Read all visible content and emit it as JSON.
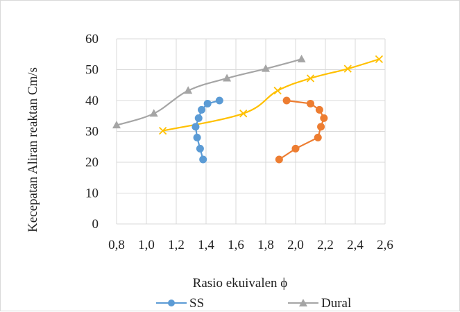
{
  "chart_data": {
    "type": "scatter",
    "xlabel": "Rasio ekuivalen   ϕ",
    "ylabel": "Kecepatan Aliran reaktan   Cm/s",
    "xlim": [
      0.8,
      2.6
    ],
    "ylim": [
      0,
      60
    ],
    "x_ticks": [
      "0,8",
      "1,0",
      "1,2",
      "1,4",
      "1,6",
      "1,8",
      "2,0",
      "2,2",
      "2,4",
      "2,6"
    ],
    "y_ticks": [
      "0",
      "10",
      "20",
      "30",
      "40",
      "50",
      "60"
    ],
    "grid": "vertical and horizontal",
    "legend_position": "bottom",
    "series": [
      {
        "name": "SS",
        "color": "#5b9bd5",
        "marker": "circle",
        "line": "straight",
        "points": [
          {
            "x": 1.49,
            "y": 40.0
          },
          {
            "x": 1.41,
            "y": 39.0
          },
          {
            "x": 1.37,
            "y": 37.0
          },
          {
            "x": 1.35,
            "y": 34.3
          },
          {
            "x": 1.33,
            "y": 31.5
          },
          {
            "x": 1.34,
            "y": 28.0
          },
          {
            "x": 1.36,
            "y": 24.4
          },
          {
            "x": 1.38,
            "y": 20.9
          }
        ]
      },
      {
        "name": "",
        "color": "#ed7d31",
        "marker": "circle",
        "line": "straight",
        "points": [
          {
            "x": 1.94,
            "y": 40.0
          },
          {
            "x": 2.1,
            "y": 39.0
          },
          {
            "x": 2.16,
            "y": 37.0
          },
          {
            "x": 2.19,
            "y": 34.3
          },
          {
            "x": 2.17,
            "y": 31.5
          },
          {
            "x": 2.15,
            "y": 28.0
          },
          {
            "x": 2.0,
            "y": 24.4
          },
          {
            "x": 1.89,
            "y": 20.9
          }
        ]
      },
      {
        "name": "Dural",
        "color": "#a5a5a5",
        "marker": "triangle",
        "line": "smooth",
        "points": [
          {
            "x": 0.8,
            "y": 32.0
          },
          {
            "x": 1.05,
            "y": 35.8
          },
          {
            "x": 1.28,
            "y": 43.2
          },
          {
            "x": 1.54,
            "y": 47.2
          },
          {
            "x": 1.8,
            "y": 50.3
          },
          {
            "x": 2.04,
            "y": 53.4
          }
        ]
      },
      {
        "name": "",
        "color": "#ffc000",
        "marker": "x",
        "line": "smooth",
        "points": [
          {
            "x": 1.11,
            "y": 30.2
          },
          {
            "x": 1.65,
            "y": 35.8
          },
          {
            "x": 1.88,
            "y": 43.2
          },
          {
            "x": 2.1,
            "y": 47.2
          },
          {
            "x": 2.35,
            "y": 50.3
          },
          {
            "x": 2.56,
            "y": 53.4
          }
        ]
      }
    ]
  }
}
